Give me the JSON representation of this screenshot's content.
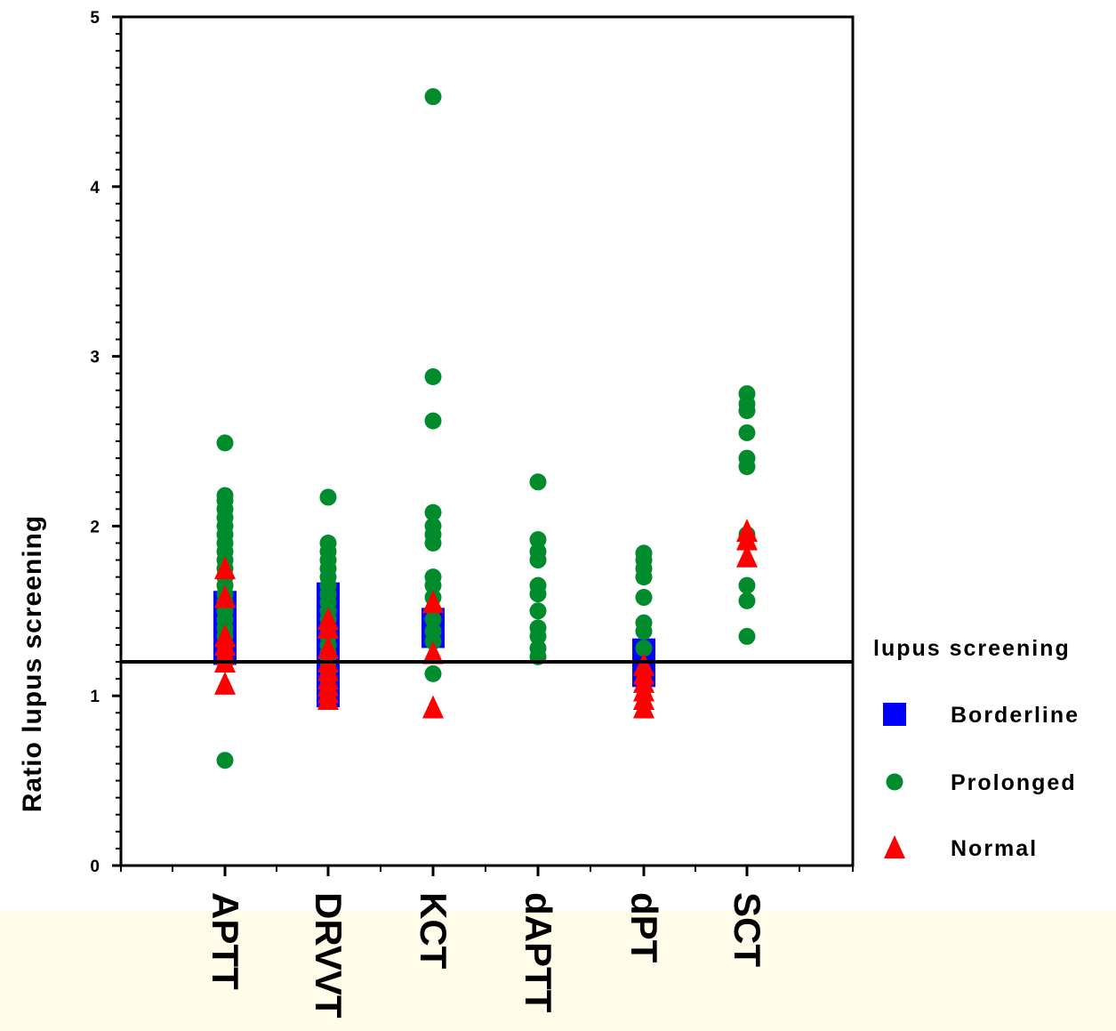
{
  "chart_data": {
    "type": "scatter",
    "title": "",
    "xlabel": "",
    "ylabel": "Ratio lupus screening",
    "ylim": [
      0,
      5
    ],
    "yticks": [
      "0",
      "1",
      "2",
      "3",
      "4",
      "5"
    ],
    "categories": [
      "APTT",
      "DRVVT",
      "KCT",
      "dAPTT",
      "dPT",
      "SCT"
    ],
    "reference_line": 1.2,
    "grid": false,
    "legend": {
      "title": "lupus screening",
      "placement": "right",
      "entries": [
        "Borderline",
        "Prolonged",
        "Normal"
      ]
    },
    "series": [
      {
        "name": "Borderline",
        "color": "#0000ff",
        "marker": "square",
        "points": [
          [
            "APTT",
            1.25
          ],
          [
            "APTT",
            1.3
          ],
          [
            "APTT",
            1.35
          ],
          [
            "APTT",
            1.4
          ],
          [
            "APTT",
            1.45
          ],
          [
            "APTT",
            1.5
          ],
          [
            "APTT",
            1.55
          ],
          [
            "DRVVT",
            1.0
          ],
          [
            "DRVVT",
            1.05
          ],
          [
            "DRVVT",
            1.1
          ],
          [
            "DRVVT",
            1.15
          ],
          [
            "DRVVT",
            1.2
          ],
          [
            "DRVVT",
            1.25
          ],
          [
            "DRVVT",
            1.3
          ],
          [
            "DRVVT",
            1.35
          ],
          [
            "DRVVT",
            1.4
          ],
          [
            "DRVVT",
            1.45
          ],
          [
            "DRVVT",
            1.5
          ],
          [
            "DRVVT",
            1.55
          ],
          [
            "DRVVT",
            1.6
          ],
          [
            "KCT",
            1.35
          ],
          [
            "KCT",
            1.4
          ],
          [
            "KCT",
            1.45
          ],
          [
            "dPT",
            1.12
          ],
          [
            "dPT",
            1.17
          ],
          [
            "dPT",
            1.22
          ],
          [
            "dPT",
            1.27
          ]
        ]
      },
      {
        "name": "Prolonged",
        "color": "#008c2d",
        "marker": "circle",
        "points": [
          [
            "APTT",
            0.62
          ],
          [
            "APTT",
            1.2
          ],
          [
            "APTT",
            1.25
          ],
          [
            "APTT",
            1.3
          ],
          [
            "APTT",
            1.35
          ],
          [
            "APTT",
            1.4
          ],
          [
            "APTT",
            1.45
          ],
          [
            "APTT",
            1.5
          ],
          [
            "APTT",
            1.55
          ],
          [
            "APTT",
            1.6
          ],
          [
            "APTT",
            1.65
          ],
          [
            "APTT",
            1.7
          ],
          [
            "APTT",
            1.75
          ],
          [
            "APTT",
            1.8
          ],
          [
            "APTT",
            1.85
          ],
          [
            "APTT",
            1.9
          ],
          [
            "APTT",
            1.95
          ],
          [
            "APTT",
            2.0
          ],
          [
            "APTT",
            2.05
          ],
          [
            "APTT",
            2.1
          ],
          [
            "APTT",
            2.15
          ],
          [
            "APTT",
            2.18
          ],
          [
            "APTT",
            2.49
          ],
          [
            "DRVVT",
            0.97
          ],
          [
            "DRVVT",
            1.05
          ],
          [
            "DRVVT",
            1.1
          ],
          [
            "DRVVT",
            1.15
          ],
          [
            "DRVVT",
            1.2
          ],
          [
            "DRVVT",
            1.25
          ],
          [
            "DRVVT",
            1.3
          ],
          [
            "DRVVT",
            1.35
          ],
          [
            "DRVVT",
            1.4
          ],
          [
            "DRVVT",
            1.45
          ],
          [
            "DRVVT",
            1.5
          ],
          [
            "DRVVT",
            1.55
          ],
          [
            "DRVVT",
            1.6
          ],
          [
            "DRVVT",
            1.65
          ],
          [
            "DRVVT",
            1.7
          ],
          [
            "DRVVT",
            1.75
          ],
          [
            "DRVVT",
            1.8
          ],
          [
            "DRVVT",
            1.85
          ],
          [
            "DRVVT",
            1.9
          ],
          [
            "DRVVT",
            2.17
          ],
          [
            "KCT",
            1.13
          ],
          [
            "KCT",
            1.32
          ],
          [
            "KCT",
            1.38
          ],
          [
            "KCT",
            1.45
          ],
          [
            "KCT",
            1.58
          ],
          [
            "KCT",
            1.65
          ],
          [
            "KCT",
            1.7
          ],
          [
            "KCT",
            1.9
          ],
          [
            "KCT",
            1.95
          ],
          [
            "KCT",
            2.0
          ],
          [
            "KCT",
            2.08
          ],
          [
            "KCT",
            2.62
          ],
          [
            "KCT",
            2.88
          ],
          [
            "KCT",
            4.53
          ],
          [
            "dAPTT",
            1.23
          ],
          [
            "dAPTT",
            1.28
          ],
          [
            "dAPTT",
            1.35
          ],
          [
            "dAPTT",
            1.4
          ],
          [
            "dAPTT",
            1.5
          ],
          [
            "dAPTT",
            1.6
          ],
          [
            "dAPTT",
            1.65
          ],
          [
            "dAPTT",
            1.8
          ],
          [
            "dAPTT",
            1.85
          ],
          [
            "dAPTT",
            1.92
          ],
          [
            "dAPTT",
            2.26
          ],
          [
            "dPT",
            1.28
          ],
          [
            "dPT",
            1.38
          ],
          [
            "dPT",
            1.43
          ],
          [
            "dPT",
            1.58
          ],
          [
            "dPT",
            1.7
          ],
          [
            "dPT",
            1.75
          ],
          [
            "dPT",
            1.8
          ],
          [
            "dPT",
            1.84
          ],
          [
            "SCT",
            1.35
          ],
          [
            "SCT",
            1.56
          ],
          [
            "SCT",
            1.65
          ],
          [
            "SCT",
            1.95
          ],
          [
            "SCT",
            2.35
          ],
          [
            "SCT",
            2.4
          ],
          [
            "SCT",
            2.55
          ],
          [
            "SCT",
            2.68
          ],
          [
            "SCT",
            2.72
          ],
          [
            "SCT",
            2.78
          ]
        ]
      },
      {
        "name": "Normal",
        "color": "#ff0000",
        "marker": "triangle",
        "points": [
          [
            "APTT",
            1.07
          ],
          [
            "APTT",
            1.2
          ],
          [
            "APTT",
            1.25
          ],
          [
            "APTT",
            1.3
          ],
          [
            "APTT",
            1.35
          ],
          [
            "APTT",
            1.58
          ],
          [
            "APTT",
            1.75
          ],
          [
            "DRVVT",
            0.98
          ],
          [
            "DRVVT",
            1.02
          ],
          [
            "DRVVT",
            1.06
          ],
          [
            "DRVVT",
            1.1
          ],
          [
            "DRVVT",
            1.15
          ],
          [
            "DRVVT",
            1.2
          ],
          [
            "DRVVT",
            1.28
          ],
          [
            "DRVVT",
            1.4
          ],
          [
            "DRVVT",
            1.45
          ],
          [
            "KCT",
            0.93
          ],
          [
            "KCT",
            1.25
          ],
          [
            "KCT",
            1.55
          ],
          [
            "dPT",
            0.93
          ],
          [
            "dPT",
            0.98
          ],
          [
            "dPT",
            1.03
          ],
          [
            "dPT",
            1.08
          ],
          [
            "dPT",
            1.13
          ],
          [
            "dPT",
            1.18
          ],
          [
            "SCT",
            1.82
          ],
          [
            "SCT",
            1.92
          ],
          [
            "SCT",
            1.97
          ]
        ]
      }
    ]
  }
}
